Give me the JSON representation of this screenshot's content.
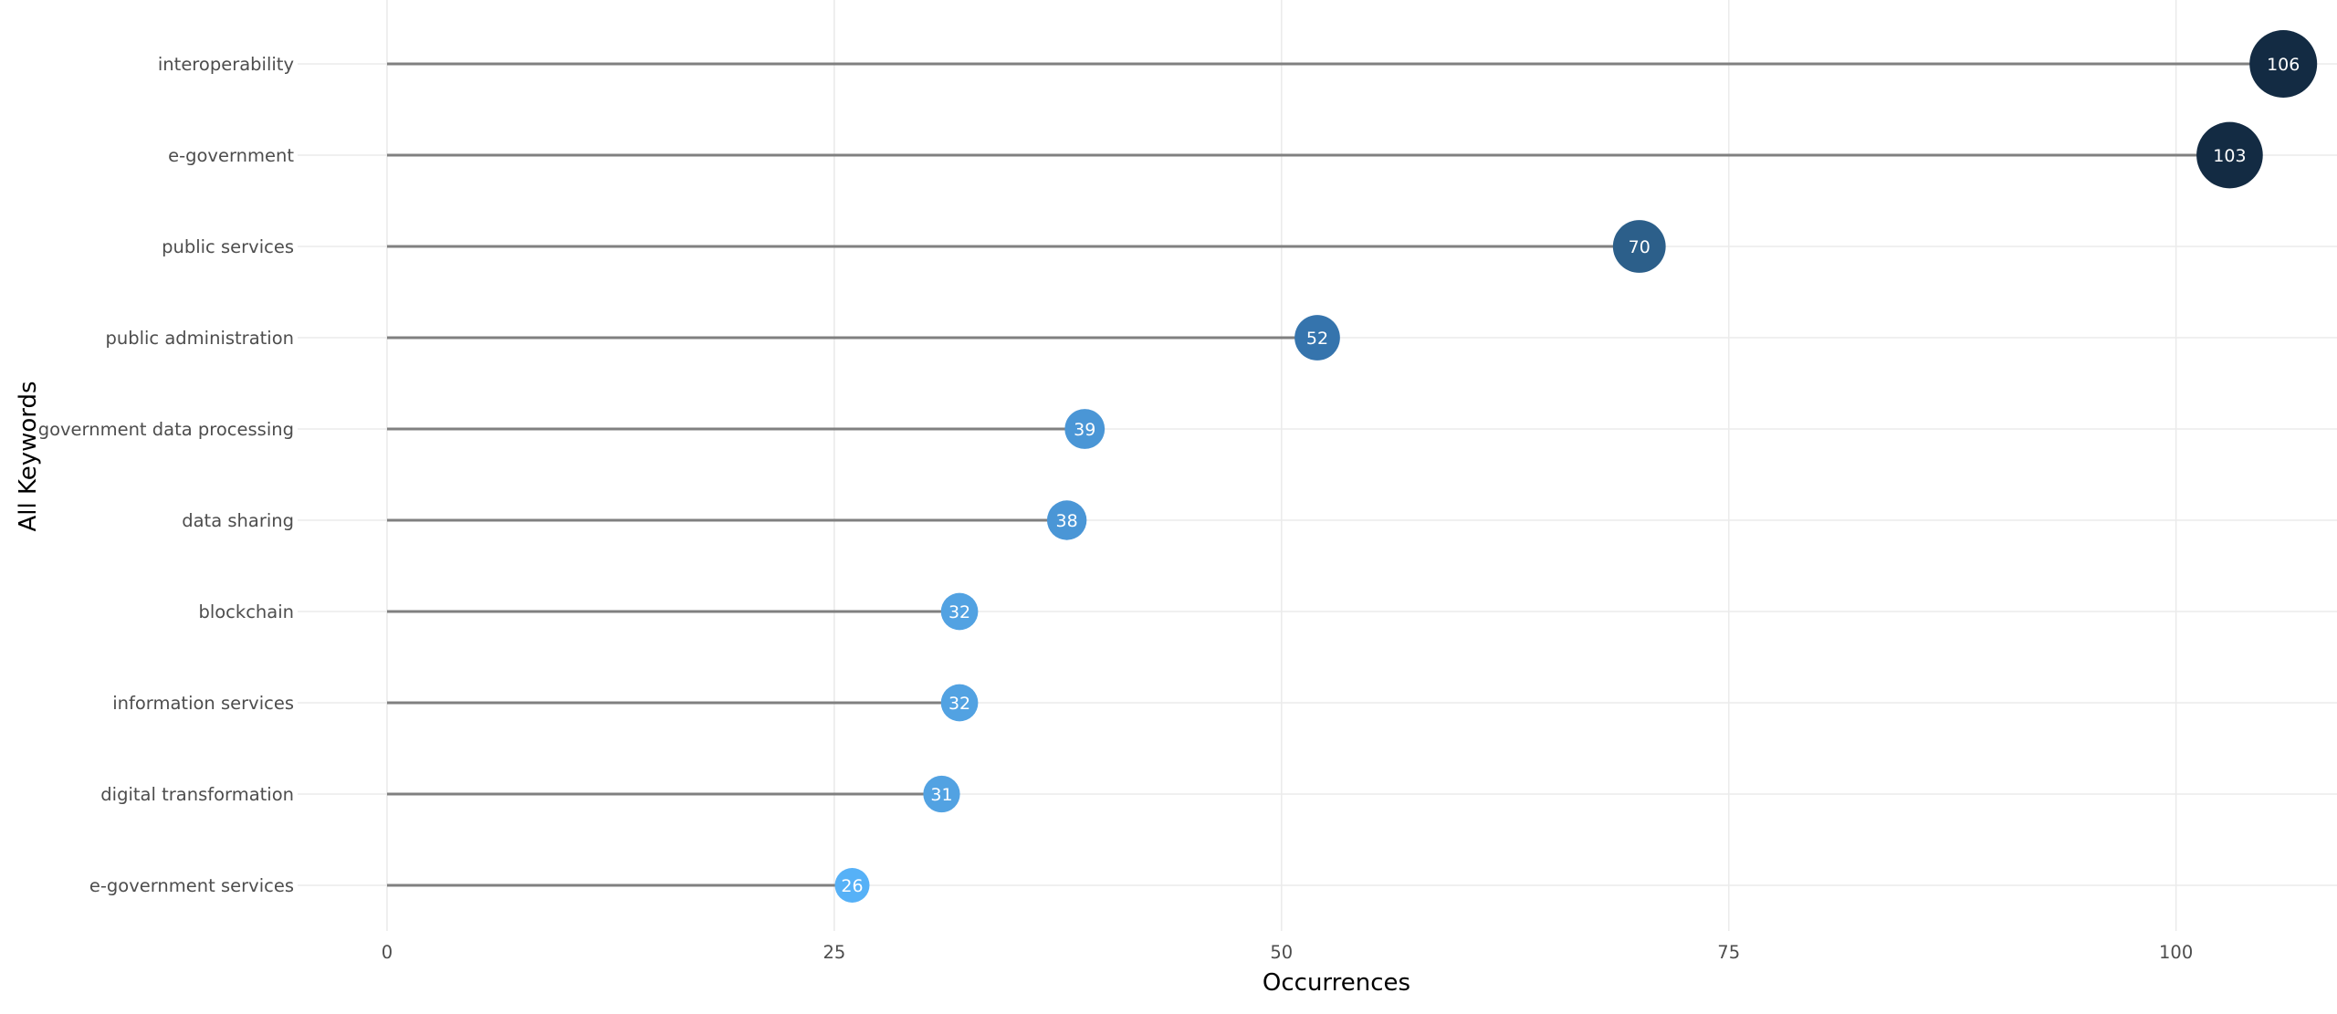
{
  "chart_data": {
    "type": "lollipop",
    "xlabel": "Occurrences",
    "ylabel": "All Keywords",
    "xlim": [
      -5,
      109
    ],
    "x_ticks": [
      0,
      25,
      50,
      75,
      100
    ],
    "grid": true,
    "legend": "none",
    "categories": [
      "interoperability",
      "e-government",
      "public services",
      "public administration",
      "government data processing",
      "data sharing",
      "blockchain",
      "information services",
      "digital transformation",
      "e-government services"
    ],
    "values": [
      106,
      103,
      70,
      52,
      39,
      38,
      32,
      32,
      31,
      26
    ],
    "point_colors": [
      "#132b43",
      "#132b43",
      "#2c5f8a",
      "#3574ad",
      "#4a96d6",
      "#4a96d6",
      "#52a2e2",
      "#52a2e2",
      "#52a2e2",
      "#56b1f7"
    ],
    "stem_color": "#808080",
    "grid_color": "#ebebeb",
    "label_color": "#ffffff"
  }
}
